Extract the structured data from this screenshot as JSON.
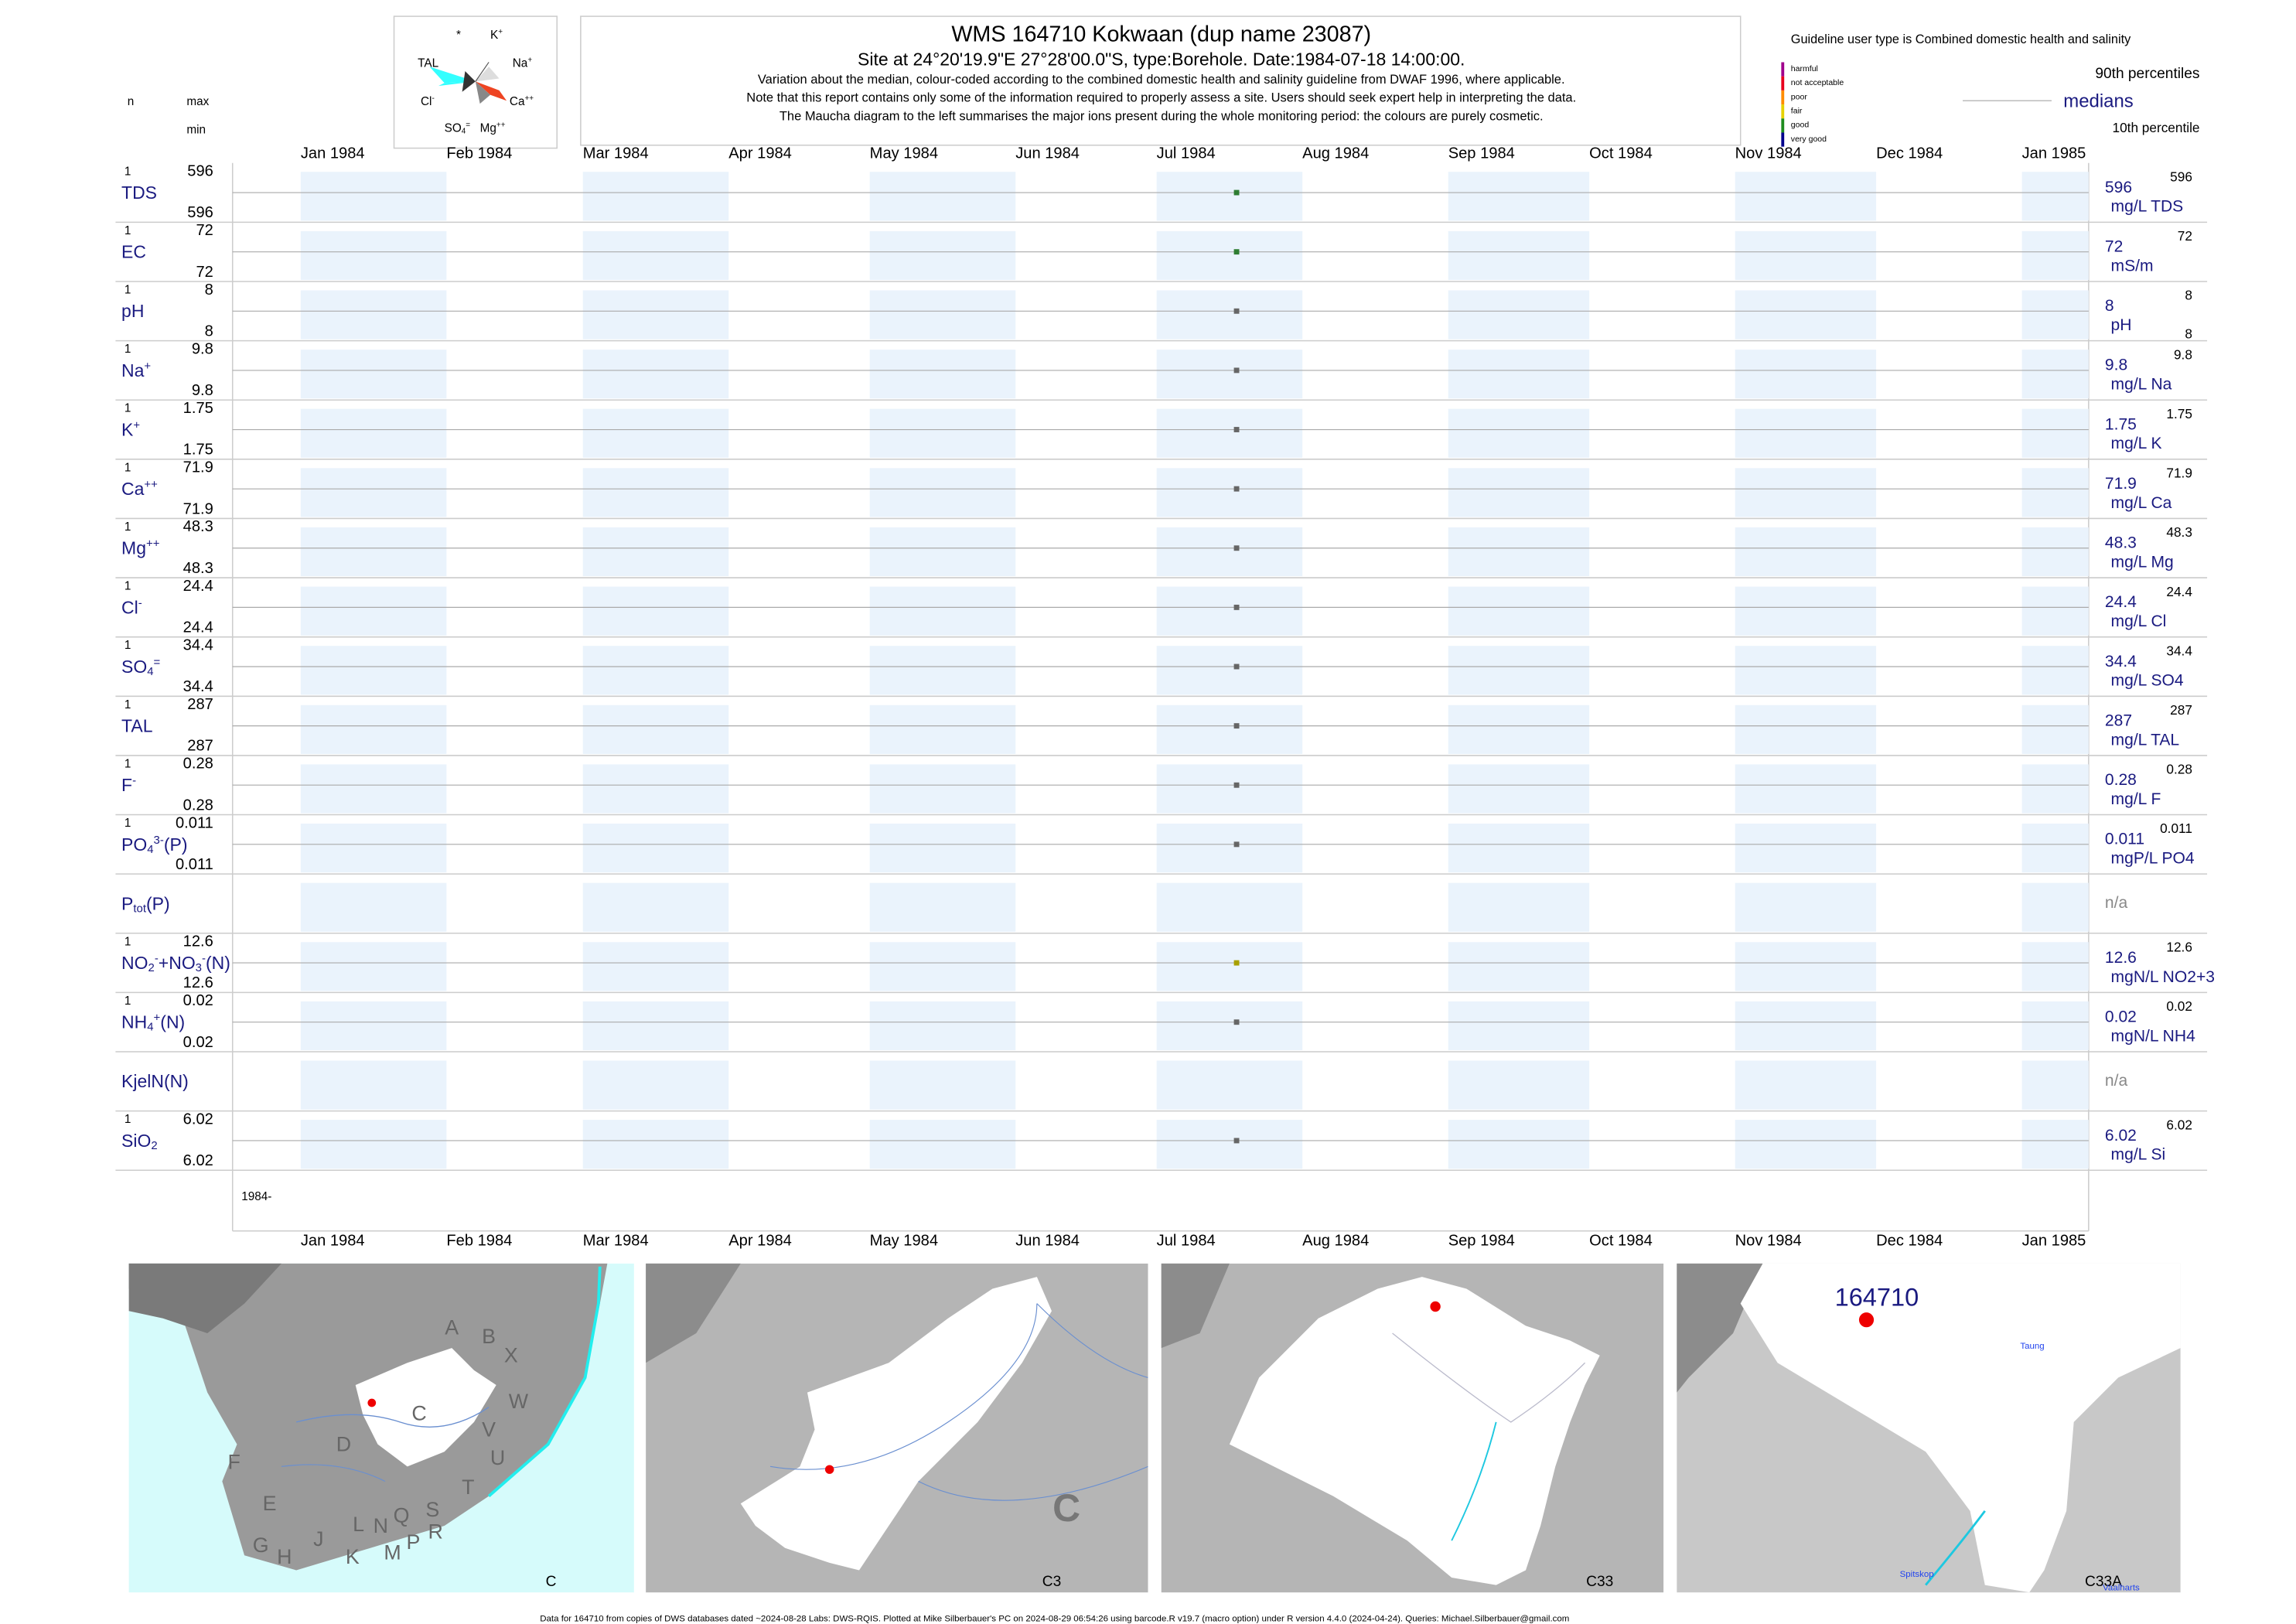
{
  "header": {
    "title": "WMS 164710  Kokwaan (dup name 23087)",
    "site": "Site at 24°20'19.9\"E 27°28'00.0\"S, type:Borehole. Date:1984-07-18 14:00:00.",
    "notes": [
      "Variation about the median,  colour-coded according to the combined domestic health and salinity guideline from DWAF 1996, where applicable.",
      "Note that this report contains only some of the information required to properly assess a site. Users should seek expert help in interpreting the data.",
      "The Maucha diagram to the left summarises the major ions present during the whole monitoring period: the colours are purely cosmetic."
    ]
  },
  "maucha_labels": [
    [
      {
        "t": "*"
      }
    ],
    [
      {
        "t": "K"
      },
      {
        "t": "+",
        "s": "sup"
      }
    ],
    [
      {
        "t": "TAL"
      }
    ],
    [
      {
        "t": "Na"
      },
      {
        "t": "+",
        "s": "sup"
      }
    ],
    [
      {
        "t": "Cl"
      },
      {
        "t": "-",
        "s": "sup"
      }
    ],
    [
      {
        "t": "Ca"
      },
      {
        "t": "++",
        "s": "sup"
      }
    ],
    [
      {
        "t": "SO"
      },
      {
        "t": "4",
        "s": "sub"
      },
      {
        "t": "=",
        "s": "sup"
      }
    ],
    [
      {
        "t": "Mg"
      },
      {
        "t": "++",
        "s": "sup"
      }
    ]
  ],
  "columns": {
    "n": "n",
    "max": "max",
    "min": "min"
  },
  "legend": {
    "guideline": "Guideline user type is Combined domestic health and salinity",
    "classes": [
      {
        "name": "harmful",
        "color": "#a0008c"
      },
      {
        "name": "not acceptable",
        "color": "#e8001c"
      },
      {
        "name": "poor",
        "color": "#ff8c00"
      },
      {
        "name": "fair",
        "color": "#e6d200"
      },
      {
        "name": "good",
        "color": "#1e8c1e"
      },
      {
        "name": "very good",
        "color": "#00008c"
      }
    ],
    "upper": "90th percentiles",
    "middle": "medians",
    "lower": "10th percentile"
  },
  "timeline": {
    "xlim": [
      "1984-01",
      "1985-01"
    ],
    "xticks": [
      {
        "value": "1984-01",
        "label": "Jan 1984"
      },
      {
        "value": "1984-02",
        "label": "Feb 1984"
      },
      {
        "value": "1984-03",
        "label": "Mar 1984"
      },
      {
        "value": "1984-04",
        "label": "Apr 1984"
      },
      {
        "value": "1984-05",
        "label": "May 1984"
      },
      {
        "value": "1984-06",
        "label": "Jun 1984"
      },
      {
        "value": "1984-07",
        "label": "Jul 1984"
      },
      {
        "value": "1984-08",
        "label": "Aug 1984"
      },
      {
        "value": "1984-09",
        "label": "Sep 1984"
      },
      {
        "value": "1984-10",
        "label": "Oct 1984"
      },
      {
        "value": "1984-11",
        "label": "Nov 1984"
      },
      {
        "value": "1984-12",
        "label": "Dec 1984"
      },
      {
        "value": "1985-01",
        "label": "Jan 1985"
      }
    ],
    "x": [
      "1984-07-18"
    ],
    "year_label": "1984-"
  },
  "rows": [
    {
      "label": [
        {
          "t": "TDS"
        }
      ],
      "n": 1,
      "max": 596,
      "min": 596,
      "median": 596,
      "p90": 596,
      "unit": "mg/L TDS",
      "color": "#2e7d32"
    },
    {
      "label": [
        {
          "t": "EC"
        }
      ],
      "n": 1,
      "max": 72,
      "min": 72,
      "median": 72,
      "p90": 72,
      "unit": "mS/m",
      "color": "#2e7d32"
    },
    {
      "label": [
        {
          "t": "pH"
        }
      ],
      "n": 1,
      "max": 8,
      "min": 8,
      "median": 8,
      "p90": 8,
      "p10": 8,
      "unit": "pH",
      "color": "#666666"
    },
    {
      "label": [
        {
          "t": "Na"
        },
        {
          "t": "+",
          "s": "sup"
        }
      ],
      "n": 1,
      "max": 9.8,
      "min": 9.8,
      "median": 9.8,
      "p90": 9.8,
      "unit": "mg/L Na",
      "color": "#666666"
    },
    {
      "label": [
        {
          "t": "K"
        },
        {
          "t": "+",
          "s": "sup"
        }
      ],
      "n": 1,
      "max": 1.75,
      "min": 1.75,
      "median": 1.75,
      "p90": 1.75,
      "unit": "mg/L K",
      "color": "#666666"
    },
    {
      "label": [
        {
          "t": "Ca"
        },
        {
          "t": "++",
          "s": "sup"
        }
      ],
      "n": 1,
      "max": 71.9,
      "min": 71.9,
      "median": 71.9,
      "p90": 71.9,
      "unit": "mg/L Ca",
      "color": "#666666"
    },
    {
      "label": [
        {
          "t": "Mg"
        },
        {
          "t": "++",
          "s": "sup"
        }
      ],
      "n": 1,
      "max": 48.3,
      "min": 48.3,
      "median": 48.3,
      "p90": 48.3,
      "unit": "mg/L Mg",
      "color": "#666666"
    },
    {
      "label": [
        {
          "t": "Cl"
        },
        {
          "t": "-",
          "s": "sup"
        }
      ],
      "n": 1,
      "max": 24.4,
      "min": 24.4,
      "median": 24.4,
      "p90": 24.4,
      "unit": "mg/L Cl",
      "color": "#666666"
    },
    {
      "label": [
        {
          "t": "SO"
        },
        {
          "t": "4",
          "s": "sub"
        },
        {
          "t": "=",
          "s": "sup"
        }
      ],
      "n": 1,
      "max": 34.4,
      "min": 34.4,
      "median": 34.4,
      "p90": 34.4,
      "unit": "mg/L SO4",
      "color": "#666666"
    },
    {
      "label": [
        {
          "t": "TAL"
        }
      ],
      "n": 1,
      "max": 287,
      "min": 287,
      "median": 287,
      "p90": 287,
      "unit": "mg/L TAL",
      "color": "#666666"
    },
    {
      "label": [
        {
          "t": "F"
        },
        {
          "t": "-",
          "s": "sup"
        }
      ],
      "n": 1,
      "max": 0.28,
      "min": 0.28,
      "median": 0.28,
      "p90": 0.28,
      "unit": "mg/L F",
      "color": "#666666"
    },
    {
      "label": [
        {
          "t": "PO"
        },
        {
          "t": "4",
          "s": "sub"
        },
        {
          "t": "3-",
          "s": "sup"
        },
        {
          "t": "(P)"
        }
      ],
      "n": 1,
      "max": 0.011,
      "min": 0.011,
      "median": 0.011,
      "p90": 0.011,
      "unit": "mgP/L PO4",
      "color": "#666666"
    },
    {
      "label": [
        {
          "t": "P"
        },
        {
          "t": "tot",
          "s": "sub"
        },
        {
          "t": "(P)"
        }
      ],
      "na": "n/a"
    },
    {
      "label": [
        {
          "t": "NO"
        },
        {
          "t": "2",
          "s": "sub"
        },
        {
          "t": "-",
          "s": "sup"
        },
        {
          "t": "+NO"
        },
        {
          "t": "3",
          "s": "sub"
        },
        {
          "t": "-",
          "s": "sup"
        },
        {
          "t": "(N)"
        }
      ],
      "n": 1,
      "max": 12.6,
      "min": 12.6,
      "median": 12.6,
      "p90": 12.6,
      "unit": "mgN/L NO2+3",
      "color": "#a8a000"
    },
    {
      "label": [
        {
          "t": "NH"
        },
        {
          "t": "4",
          "s": "sub"
        },
        {
          "t": "+",
          "s": "sup"
        },
        {
          "t": "(N)"
        }
      ],
      "n": 1,
      "max": 0.02,
      "min": 0.02,
      "median": 0.02,
      "p90": 0.02,
      "unit": "mgN/L NH4",
      "color": "#666666"
    },
    {
      "label": [
        {
          "t": "KjelN(N)"
        }
      ],
      "na": "n/a"
    },
    {
      "label": [
        {
          "t": "SiO"
        },
        {
          "t": "2",
          "s": "sub"
        }
      ],
      "n": 1,
      "max": 6.02,
      "min": 6.02,
      "median": 6.02,
      "p90": 6.02,
      "unit": "mg/L Si",
      "color": "#666666"
    }
  ],
  "maps": [
    {
      "title": "C",
      "labels": [
        "A",
        "B",
        "X",
        "W",
        "C",
        "V",
        "U",
        "D",
        "T",
        "F",
        "E",
        "L",
        "N",
        "Q",
        "S",
        "R",
        "P",
        "M",
        "K",
        "J",
        "H",
        "G"
      ]
    },
    {
      "title": "C3",
      "labels": [
        "C"
      ]
    },
    {
      "title": "C33",
      "labels": []
    },
    {
      "title": "C33A",
      "labels": [
        "164710",
        "Taung",
        "Spitskop",
        "Vaalharts"
      ]
    }
  ],
  "footer": "Data for 164710 from copies of DWS databases dated ~2024-08-28 Labs: DWS-RQIS. Plotted at Mike Silberbauer's PC on 2024-08-29 06:54:26 using barcode.R v19.7 (macro option) under R version 4.4.0 (2024-04-24). Queries: Michael.Silberbauer@gmail.com"
}
